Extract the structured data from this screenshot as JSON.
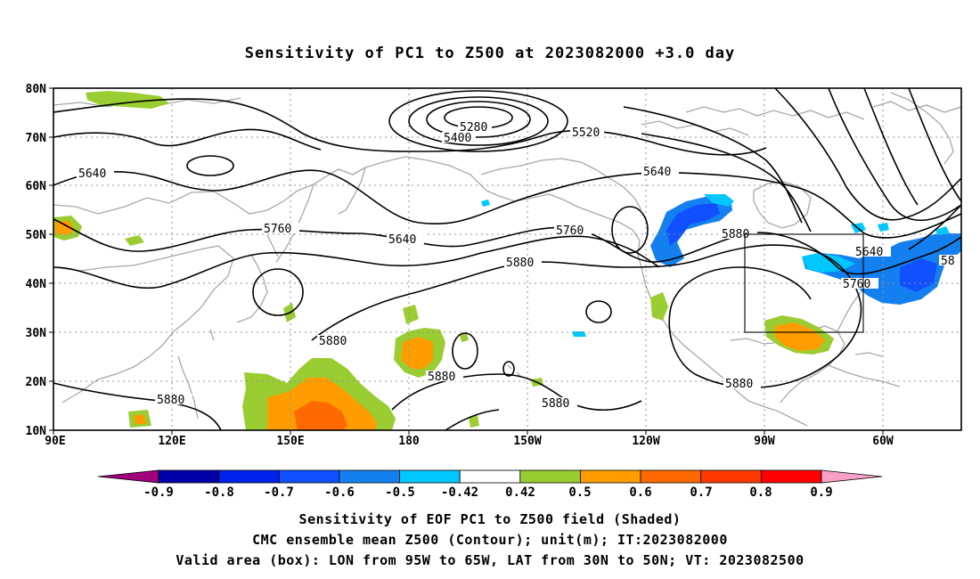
{
  "title": "Sensitivity of PC1 to Z500 at 2023082000 +3.0 day",
  "captions": {
    "line1": "Sensitivity of EOF PC1 to Z500 field (Shaded)",
    "line2": "CMC ensemble mean Z500 (Contour); unit(m); IT:2023082000",
    "line3": "Valid area (box): LON from 95W to 65W, LAT from 30N to 50N; VT: 2023082500"
  },
  "map": {
    "lat_ticks": [
      "80N",
      "70N",
      "60N",
      "50N",
      "40N",
      "30N",
      "20N",
      "10N"
    ],
    "lon_ticks": [
      "90E",
      "120E",
      "150E",
      "180",
      "150W",
      "120W",
      "90W",
      "60W"
    ],
    "contour_labels": [
      {
        "text": "5280"
      },
      {
        "text": "5400"
      },
      {
        "text": "5520"
      },
      {
        "text": "5640"
      },
      {
        "text": "5640"
      },
      {
        "text": "5640"
      },
      {
        "text": "5640"
      },
      {
        "text": "5760"
      },
      {
        "text": "5760"
      },
      {
        "text": "5760"
      },
      {
        "text": "5880"
      },
      {
        "text": "5880"
      },
      {
        "text": "5880"
      },
      {
        "text": "5880"
      },
      {
        "text": "5880"
      },
      {
        "text": "5880"
      },
      {
        "text": "5880"
      },
      {
        "text": "58"
      }
    ],
    "valid_box": {
      "lon_from": "95W",
      "lon_to": "65W",
      "lat_from": "30N",
      "lat_to": "50N"
    }
  },
  "colorbar": {
    "labels": [
      "-0.9",
      "-0.8",
      "-0.7",
      "-0.6",
      "-0.5",
      "-0.42",
      "0.42",
      "0.5",
      "0.6",
      "0.7",
      "0.8",
      "0.9"
    ],
    "colors": [
      "#a0007c",
      "#0000a8",
      "#0022ee",
      "#1050ff",
      "#1480f0",
      "#00c8ff",
      "#ffffff",
      "#9acd32",
      "#ff9c00",
      "#ff6a00",
      "#ff3a00",
      "#ff0000",
      "#f8a0c8"
    ]
  }
}
